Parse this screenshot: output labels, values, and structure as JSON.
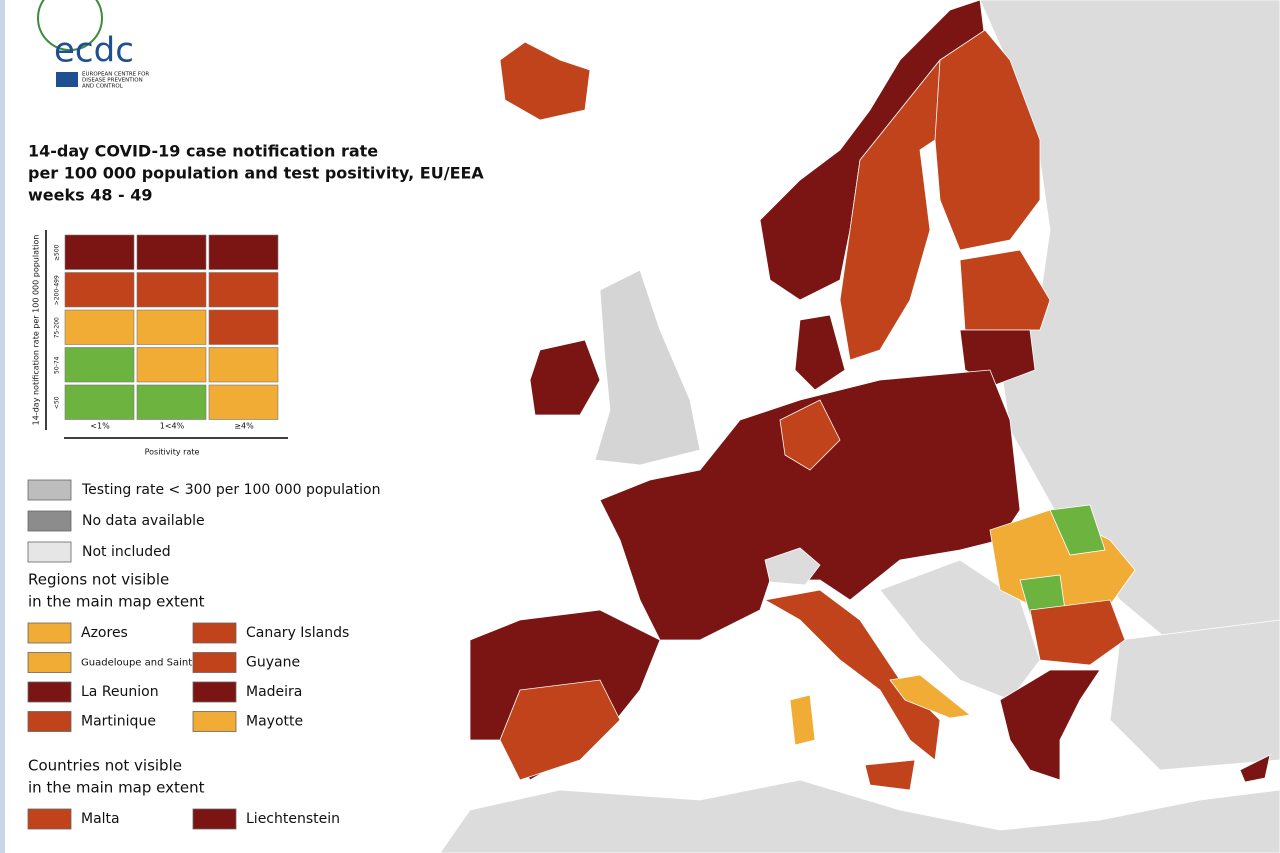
{
  "logo": {
    "name": "ecdc",
    "subtitle": [
      "EUROPEAN CENTRE FOR",
      "DISEASE PREVENTION",
      "AND CONTROL"
    ]
  },
  "title": [
    "14-day COVID-19 case notification rate",
    "per 100 000 population and test positivity, EU/EEA",
    "weeks 48 - 49"
  ],
  "matrix": {
    "y_label": "14-day notification rate per 100 000 population",
    "x_label": "Positivity rate",
    "columns": [
      "<1%",
      "1<4%",
      "≥4%"
    ],
    "rows": [
      {
        "label": "≥500",
        "colors": [
          "#7a1513",
          "#7a1513",
          "#7a1513"
        ]
      },
      {
        "label": ">200-499",
        "colors": [
          "#c1431c",
          "#c1431c",
          "#c1431c"
        ]
      },
      {
        "label": "75-200",
        "colors": [
          "#f0ac35",
          "#f0ac35",
          "#c1431c"
        ]
      },
      {
        "label": "50-74",
        "colors": [
          "#6db33f",
          "#f0ac35",
          "#f0ac35"
        ]
      },
      {
        "label": "<50",
        "colors": [
          "#6db33f",
          "#6db33f",
          "#f0ac35"
        ]
      }
    ]
  },
  "status_legend": [
    {
      "label": "Testing rate < 300 per 100 000 population",
      "color": "#bdbdbd"
    },
    {
      "label": "No data available",
      "color": "#8c8c8c"
    },
    {
      "label": "Not included",
      "color": "#e6e6e6"
    }
  ],
  "regions": {
    "title": [
      "Regions not visible",
      "in the main map extent"
    ],
    "items": [
      {
        "label": "Azores",
        "color": "#f0ac35"
      },
      {
        "label": "Canary Islands",
        "color": "#c1431c"
      },
      {
        "label": "Guadeloupe and Saint Martin",
        "color": "#f0ac35"
      },
      {
        "label": "Guyane",
        "color": "#c1431c"
      },
      {
        "label": "La Reunion",
        "color": "#7a1513"
      },
      {
        "label": "Madeira",
        "color": "#7a1513"
      },
      {
        "label": "Martinique",
        "color": "#c1431c"
      },
      {
        "label": "Mayotte",
        "color": "#f0ac35"
      }
    ]
  },
  "countries": {
    "title": [
      "Countries not visible",
      "in the main map extent"
    ],
    "items": [
      {
        "label": "Malta",
        "color": "#c1431c"
      },
      {
        "label": "Liechtenstein",
        "color": "#7a1513"
      }
    ]
  }
}
